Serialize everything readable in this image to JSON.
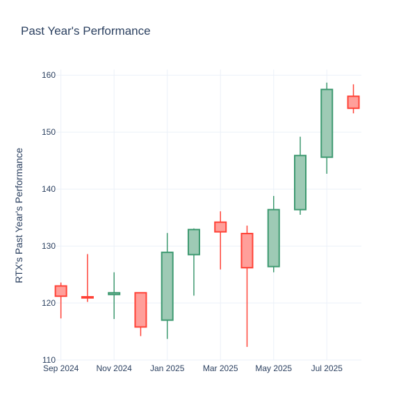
{
  "chart_data": {
    "type": "candlestick",
    "title": "Past Year's Performance",
    "xlabel": "",
    "ylabel": "RTX's Past Year's Performance",
    "ylim": [
      110,
      161
    ],
    "yticks": [
      110,
      120,
      130,
      140,
      150,
      160
    ],
    "x_range_months": [
      -0.2,
      11.3
    ],
    "xticks": [
      {
        "label": "Sep 2024",
        "pos": 0
      },
      {
        "label": "Nov 2024",
        "pos": 2
      },
      {
        "label": "Jan 2025",
        "pos": 4
      },
      {
        "label": "Mar 2025",
        "pos": 6
      },
      {
        "label": "May 2025",
        "pos": 8
      },
      {
        "label": "Jul 2025",
        "pos": 10
      }
    ],
    "colors": {
      "increasing_line": "#3d9970",
      "increasing_fill": "#9ecab5",
      "decreasing_line": "#ff4136",
      "decreasing_fill": "#ff9f9a"
    },
    "candles": [
      {
        "month": "Sep 2024",
        "pos": 0,
        "open": 123.0,
        "high": 123.6,
        "low": 117.3,
        "close": 121.2
      },
      {
        "month": "Oct 2024",
        "pos": 1,
        "open": 121.1,
        "high": 128.6,
        "low": 120.2,
        "close": 120.9
      },
      {
        "month": "Nov 2024",
        "pos": 2,
        "open": 121.5,
        "high": 125.4,
        "low": 117.2,
        "close": 121.8
      },
      {
        "month": "Dec 2024",
        "pos": 3,
        "open": 121.8,
        "high": 121.8,
        "low": 114.2,
        "close": 115.8
      },
      {
        "month": "Jan 2025",
        "pos": 4,
        "open": 117.0,
        "high": 132.3,
        "low": 113.7,
        "close": 128.9
      },
      {
        "month": "Feb 2025",
        "pos": 5,
        "open": 128.5,
        "high": 133.1,
        "low": 121.3,
        "close": 132.9
      },
      {
        "month": "Mar 2025",
        "pos": 6,
        "open": 134.2,
        "high": 136.1,
        "low": 125.9,
        "close": 132.5
      },
      {
        "month": "Apr 2025",
        "pos": 7,
        "open": 132.2,
        "high": 133.6,
        "low": 112.3,
        "close": 126.2
      },
      {
        "month": "May 2025",
        "pos": 8,
        "open": 126.4,
        "high": 138.8,
        "low": 125.4,
        "close": 136.4
      },
      {
        "month": "Jun 2025",
        "pos": 9,
        "open": 136.4,
        "high": 149.2,
        "low": 135.5,
        "close": 145.9
      },
      {
        "month": "Jul 2025",
        "pos": 10,
        "open": 145.6,
        "high": 158.7,
        "low": 142.7,
        "close": 157.5
      },
      {
        "month": "Aug 2025",
        "pos": 11,
        "open": 156.3,
        "high": 158.4,
        "low": 153.3,
        "close": 154.2
      }
    ]
  }
}
